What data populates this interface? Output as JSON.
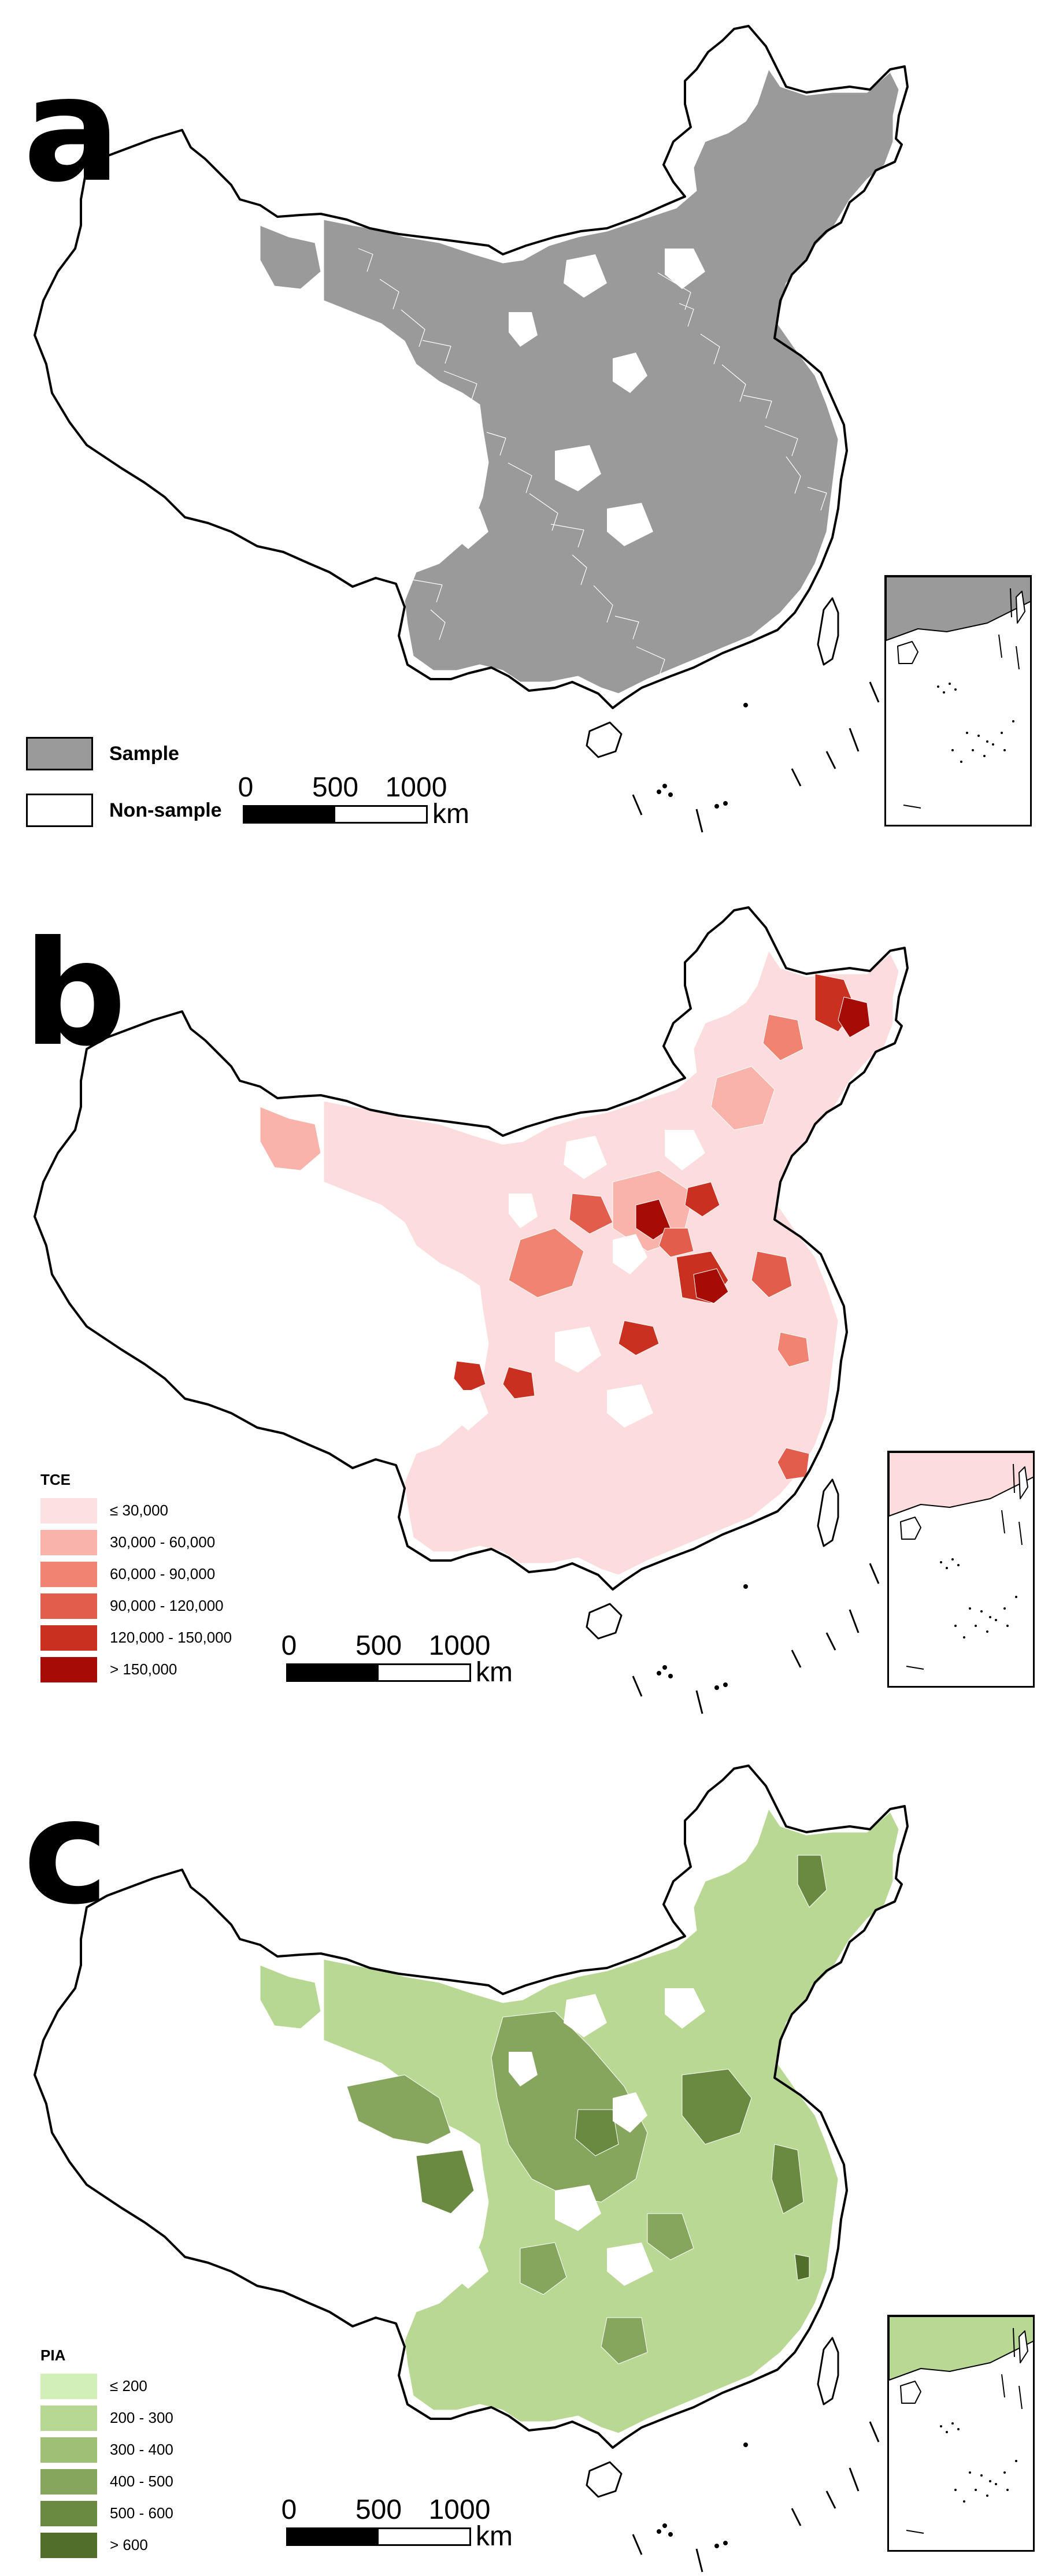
{
  "panels": [
    {
      "id": "a",
      "letter": "a",
      "fill_mode": "sample",
      "region_color": "#9a9a9a",
      "legend": {
        "title": "",
        "items": [
          {
            "label": "Sample",
            "color": "#9a9a9a"
          },
          {
            "label": "Non-sample",
            "color": "#ffffff"
          }
        ]
      },
      "scale": {
        "ticks": [
          "0",
          "500",
          "1000"
        ],
        "unit": "km"
      }
    },
    {
      "id": "b",
      "letter": "b",
      "fill_mode": "graded",
      "region_color": "#fcdcdc",
      "legend": {
        "title": "TCE",
        "items": [
          {
            "label": "≤ 30,000",
            "color": "#fde0e0"
          },
          {
            "label": "30,000 - 60,000",
            "color": "#f9b3ab"
          },
          {
            "label": "60,000 - 90,000",
            "color": "#f18372"
          },
          {
            "label": "90,000 - 120,000",
            "color": "#e35d4d"
          },
          {
            "label": "120,000 - 150,000",
            "color": "#c9301f"
          },
          {
            "label": "> 150,000",
            "color": "#a60b05"
          }
        ]
      },
      "scale": {
        "ticks": [
          "0",
          "500",
          "1000"
        ],
        "unit": "km"
      }
    },
    {
      "id": "c",
      "letter": "c",
      "fill_mode": "graded",
      "region_color": "#b9d894",
      "legend": {
        "title": "PIA",
        "items": [
          {
            "label": "≤ 200",
            "color": "#d2efb8"
          },
          {
            "label": "200 - 300",
            "color": "#b7d892"
          },
          {
            "label": "300 - 400",
            "color": "#9fbf77"
          },
          {
            "label": "400 - 500",
            "color": "#86a65d"
          },
          {
            "label": "500 - 600",
            "color": "#6a8a41"
          },
          {
            "label": "> 600",
            "color": "#526e2b"
          }
        ]
      },
      "scale": {
        "ticks": [
          "0",
          "500",
          "1000"
        ],
        "unit": "km"
      }
    }
  ]
}
